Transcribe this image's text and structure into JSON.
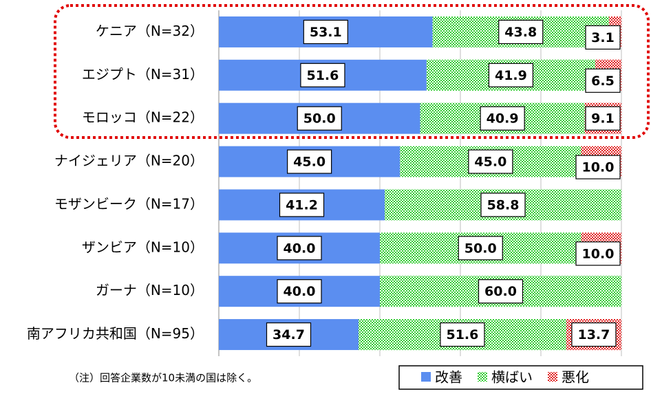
{
  "chart_data": {
    "type": "stacked_bar_horizontal",
    "categories": [
      "ケニア（N=32）",
      "エジプト（N=31）",
      "モロッコ（N=22）",
      "ナイジェリア（N=20）",
      "モザンビーク（N=17）",
      "ザンビア（N=10）",
      "ガーナ（N=10）",
      "南アフリカ共和国（N=95）"
    ],
    "series": [
      {
        "name": "改善",
        "color": "#5b8ef0",
        "pattern": "solid",
        "values": [
          53.1,
          51.6,
          50.0,
          45.0,
          41.2,
          40.0,
          40.0,
          34.7
        ],
        "value_labels": [
          "53.1",
          "51.6",
          "50.0",
          "45.0",
          "41.2",
          "40.0",
          "40.0",
          "34.7"
        ]
      },
      {
        "name": "横ばい",
        "color": "#33cc33",
        "pattern": "checker",
        "values": [
          43.8,
          41.9,
          40.9,
          45.0,
          58.8,
          50.0,
          60.0,
          51.6
        ],
        "value_labels": [
          "43.8",
          "41.9",
          "40.9",
          "45.0",
          "58.8",
          "50.0",
          "60.0",
          "51.6"
        ]
      },
      {
        "name": "悪化",
        "color": "#e02020",
        "pattern": "checker",
        "values": [
          3.1,
          6.5,
          9.1,
          10.0,
          null,
          10.0,
          null,
          13.7
        ],
        "value_labels": [
          "3.1",
          "6.5",
          "9.1",
          "10.0",
          null,
          "10.0",
          null,
          "13.7"
        ]
      }
    ],
    "xlim": [
      0,
      100
    ],
    "xticks": [
      0,
      20,
      40,
      60,
      80,
      100
    ],
    "grid": true,
    "legend": "bottom-right",
    "annotations": [
      "（注）回答企業数が10未満の国は除く。"
    ]
  }
}
